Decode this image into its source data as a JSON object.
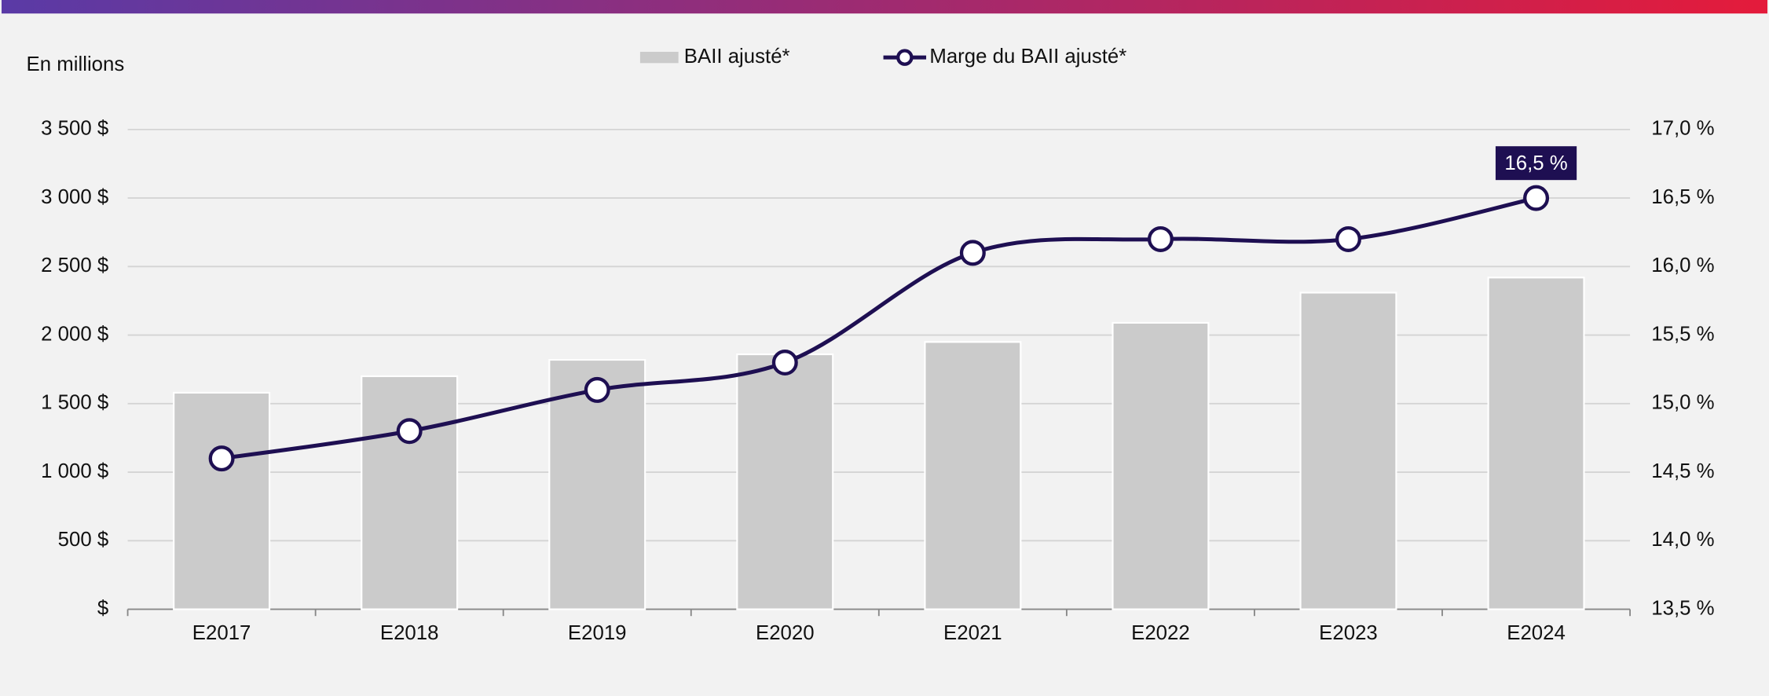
{
  "chart_data": {
    "type": "bar-line",
    "y_label": "En millions",
    "categories": [
      "E2017",
      "E2018",
      "E2019",
      "E2020",
      "E2021",
      "E2022",
      "E2023",
      "E2024"
    ],
    "series": [
      {
        "name": "BAII ajusté*",
        "type": "bar",
        "color": "#cbcbcb",
        "values": [
          1580,
          1700,
          1820,
          1860,
          1950,
          2090,
          2310,
          2420
        ]
      },
      {
        "name": "Marge du BAII ajusté*",
        "type": "line",
        "axis": "y2",
        "color": "#1e0f52",
        "values": [
          14.6,
          14.8,
          15.1,
          15.3,
          16.1,
          16.2,
          16.2,
          16.5
        ],
        "value_labels": [
          null,
          null,
          null,
          null,
          null,
          null,
          null,
          "16,5 %"
        ]
      }
    ],
    "ylim": [
      0,
      3500
    ],
    "yticks": [
      {
        "value": 0,
        "label": "$"
      },
      {
        "value": 500,
        "label": "500 $"
      },
      {
        "value": 1000,
        "label": "1 000 $"
      },
      {
        "value": 1500,
        "label": "1 500 $"
      },
      {
        "value": 2000,
        "label": "2 000 $"
      },
      {
        "value": 2500,
        "label": "2 500 $"
      },
      {
        "value": 3000,
        "label": "3 000 $"
      },
      {
        "value": 3500,
        "label": "3 500 $"
      }
    ],
    "y2lim": [
      13.5,
      17.0
    ],
    "y2ticks": [
      {
        "value": 13.5,
        "label": "13,5 %"
      },
      {
        "value": 14.0,
        "label": "14,0 %"
      },
      {
        "value": 14.5,
        "label": "14,5 %"
      },
      {
        "value": 15.0,
        "label": "15,0 %"
      },
      {
        "value": 15.5,
        "label": "15,5 %"
      },
      {
        "value": 16.0,
        "label": "16,0 %"
      },
      {
        "value": 16.5,
        "label": "16,5 %"
      },
      {
        "value": 17.0,
        "label": "17,0 %"
      }
    ],
    "grid": true,
    "legend": "top"
  }
}
